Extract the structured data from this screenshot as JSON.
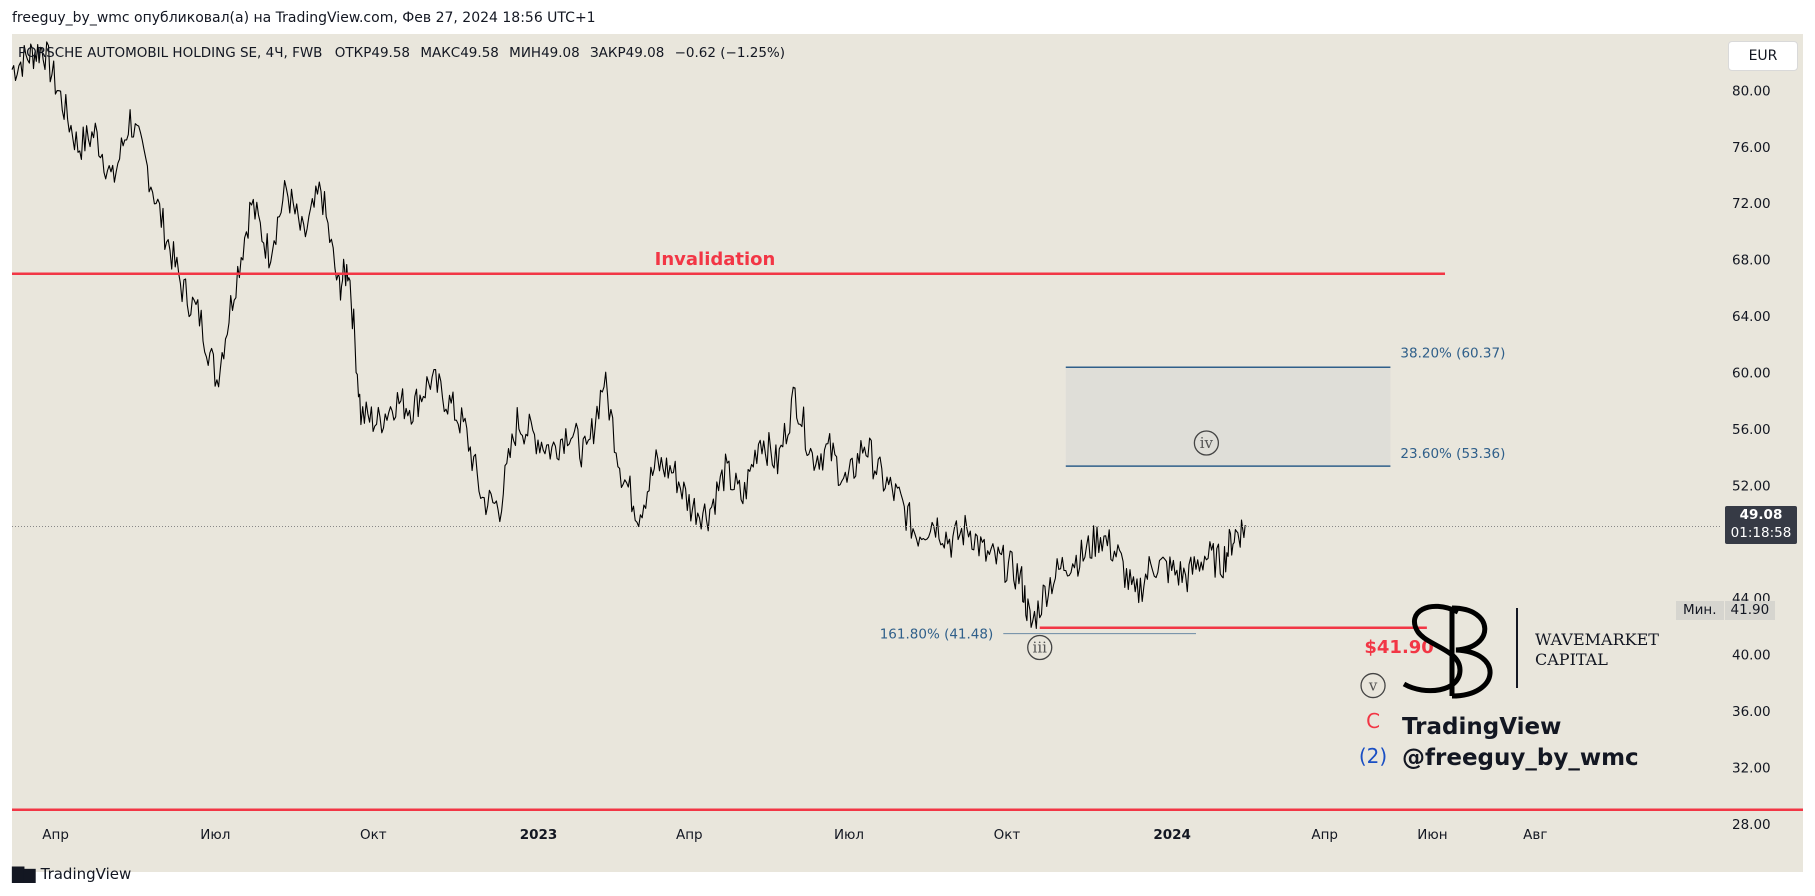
{
  "header": {
    "published_text": "freeguy_by_wmc опубликовал(а) на TradingView.com, Фев 27, 2024 18:56 UTC+1"
  },
  "legend": {
    "symbol": "PORSCHE AUTOMOBIL HOLDING SE, 4Ч, FWB",
    "open_label": "ОТКР",
    "open": "49.58",
    "high_label": "МАКС",
    "high": "49.58",
    "low_label": "МИН",
    "low": "49.08",
    "close_label": "ЗАКР",
    "close": "49.08",
    "change": "−0.62 (−1.25%)"
  },
  "currency": "EUR",
  "price_badge": {
    "price": "49.08",
    "countdown": "01:18:58"
  },
  "min_tag": {
    "label": "Мин.",
    "value": "41.90"
  },
  "footer": {
    "logo_text": "TradingView"
  },
  "watermark": {
    "brand_line1": "WAVEMARKET",
    "brand_line2": "CAPITAL",
    "line1": "TradingView",
    "line2": "@freeguy_by_wmc"
  },
  "colors": {
    "background": "#e9e6dc",
    "candle": "#000000",
    "red_line": "#f23645",
    "fib": "#2f5f8a",
    "wave_blue": "#1a4fc4",
    "label_gray": "#555555"
  },
  "chart_data": {
    "type": "line",
    "title": "PORSCHE AUTOMOBIL HOLDING SE, 4Ч, FWB",
    "ylim": [
      26,
      84
    ],
    "y_ticks": [
      "80.00",
      "76.00",
      "72.00",
      "68.00",
      "64.00",
      "60.00",
      "56.00",
      "52.00",
      "44.00",
      "40.00",
      "36.00",
      "32.00",
      "28.00"
    ],
    "x_ticks": [
      {
        "label": "Апр",
        "bold": false
      },
      {
        "label": "Июл",
        "bold": false
      },
      {
        "label": "Окт",
        "bold": false
      },
      {
        "label": "2023",
        "bold": true
      },
      {
        "label": "Апр",
        "bold": false
      },
      {
        "label": "Июл",
        "bold": false
      },
      {
        "label": "Окт",
        "bold": false
      },
      {
        "label": "2024",
        "bold": true
      },
      {
        "label": "Апр",
        "bold": false
      },
      {
        "label": "Июн",
        "bold": false
      },
      {
        "label": "Авг",
        "bold": false
      }
    ],
    "x_tick_dates": [
      "2022-04-01",
      "2022-07-01",
      "2022-10-01",
      "2023-01-01",
      "2023-04-01",
      "2023-07-01",
      "2023-10-01",
      "2024-01-01",
      "2024-04-01",
      "2024-06-01",
      "2024-08-01"
    ],
    "x_range": [
      "2022-03-18",
      "2024-11-27"
    ],
    "grid": false,
    "series": [
      {
        "x": [
          "2022-03-18",
          "2022-03-28",
          "2022-04-05",
          "2022-04-15",
          "2022-04-25",
          "2022-05-05",
          "2022-05-15",
          "2022-05-25",
          "2022-06-04",
          "2022-06-14",
          "2022-06-24",
          "2022-07-04",
          "2022-07-14",
          "2022-07-24",
          "2022-08-03",
          "2022-08-13",
          "2022-08-23",
          "2022-09-02",
          "2022-09-12",
          "2022-09-22",
          "2022-09-28",
          "2022-10-05",
          "2022-10-15",
          "2022-10-25",
          "2022-11-04",
          "2022-11-14",
          "2022-11-24",
          "2022-12-04",
          "2022-12-14",
          "2022-12-24",
          "2023-01-03",
          "2023-01-13",
          "2023-01-23",
          "2023-02-02",
          "2023-02-12",
          "2023-02-22",
          "2023-03-04",
          "2023-03-14",
          "2023-03-24",
          "2023-04-03",
          "2023-04-13",
          "2023-04-23",
          "2023-05-03",
          "2023-05-13",
          "2023-05-23",
          "2023-06-02",
          "2023-06-12",
          "2023-06-22",
          "2023-07-02",
          "2023-07-12",
          "2023-07-22",
          "2023-08-01",
          "2023-08-11",
          "2023-08-21",
          "2023-08-31",
          "2023-09-10",
          "2023-09-20",
          "2023-09-30",
          "2023-10-10",
          "2023-10-20",
          "2023-10-26",
          "2023-11-05",
          "2023-11-15",
          "2023-11-25",
          "2023-12-05",
          "2023-12-15",
          "2023-12-25",
          "2024-01-04",
          "2024-01-14",
          "2024-01-24",
          "2024-02-03",
          "2024-02-13",
          "2024-02-20",
          "2024-02-27"
        ],
        "values": [
          81.5,
          82.5,
          83.0,
          79.5,
          76.0,
          77.0,
          73.5,
          78.0,
          74.5,
          70.0,
          66.0,
          64.0,
          59.5,
          66.0,
          72.0,
          68.5,
          73.0,
          69.5,
          73.0,
          66.0,
          67.5,
          57.0,
          56.5,
          58.0,
          57.5,
          59.5,
          58.0,
          56.0,
          51.0,
          50.5,
          56.5,
          55.5,
          54.5,
          56.0,
          54.0,
          59.5,
          53.0,
          50.0,
          53.5,
          53.0,
          50.5,
          50.0,
          53.0,
          51.0,
          55.5,
          53.5,
          58.5,
          54.0,
          54.5,
          52.0,
          55.0,
          52.5,
          51.0,
          48.5,
          49.5,
          48.0,
          49.0,
          47.0,
          46.5,
          45.5,
          42.0,
          45.0,
          46.5,
          47.0,
          48.5,
          47.0,
          44.0,
          46.5,
          46.0,
          45.5,
          47.0,
          46.5,
          48.5,
          49.08
        ]
      }
    ],
    "annotations": {
      "hlines": [
        {
          "value": 67.0,
          "label": "Invalidation"
        },
        {
          "value": 29.0,
          "label": ""
        },
        {
          "value": 41.9,
          "label": "$41.90"
        }
      ],
      "fib_zone": {
        "from": 53.36,
        "to": 60.37,
        "start": "2023-11-15",
        "end": "2024-05-20",
        "top_label": "38.20% (60.37)",
        "bottom_label": "23.60% (53.36)"
      },
      "fib_ext": {
        "value": 41.48,
        "label": "161.80% (41.48)",
        "start": "2023-10-10",
        "end": "2024-01-29"
      },
      "wave_labels": [
        {
          "text": "iii",
          "x": "2023-10-31",
          "y": 40.5,
          "circled": true
        },
        {
          "text": "iv",
          "x": "2024-02-04",
          "y": 55.0,
          "circled": true
        },
        {
          "text": "v",
          "x": "2024-05-10",
          "y": 37.8,
          "circled": true
        },
        {
          "text": "C",
          "x": "2024-05-10",
          "y": 35.3,
          "circled": false
        },
        {
          "text": "(2)",
          "x": "2024-05-10",
          "y": 32.8,
          "circled": false
        }
      ]
    }
  }
}
